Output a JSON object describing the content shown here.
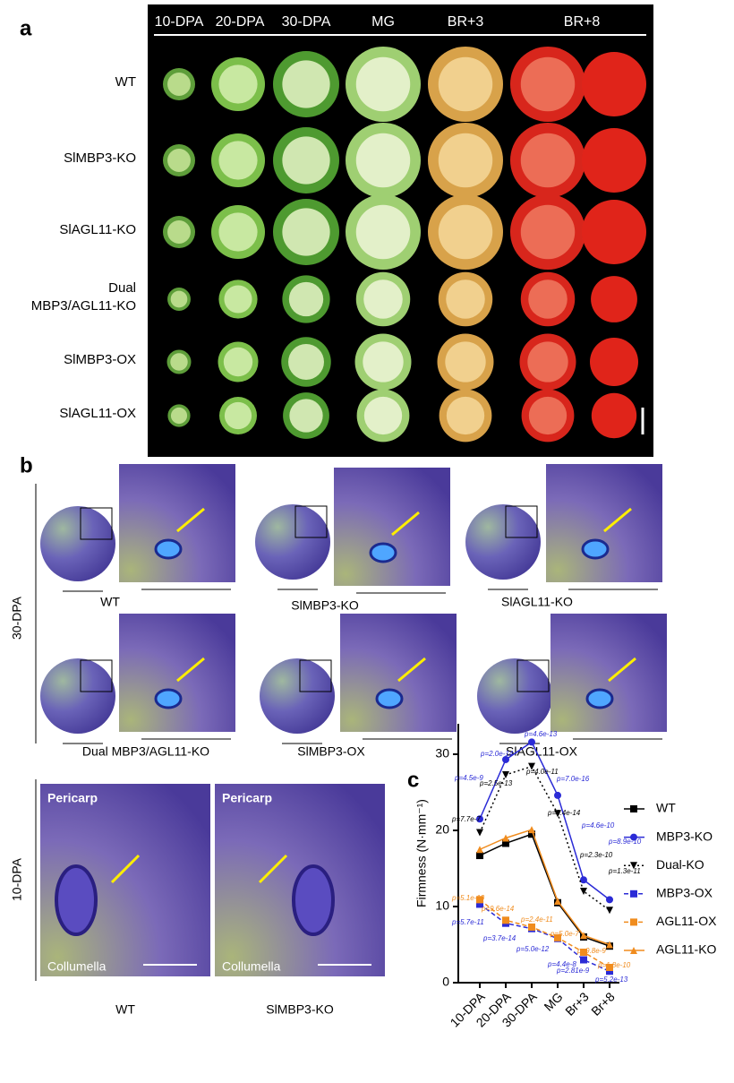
{
  "panel_a": {
    "label": "a",
    "column_headers": [
      "10-DPA",
      "20-DPA",
      "30-DPA",
      "MG",
      "BR+3",
      "BR+8"
    ],
    "row_labels": [
      [
        "WT"
      ],
      [
        "SlMBP3-KO"
      ],
      [
        "SlAGL11-KO"
      ],
      [
        "Dual",
        "MBP3/AGL11-KO"
      ],
      [
        "SlMBP3-OX"
      ],
      [
        "SlAGL11-OX"
      ]
    ]
  },
  "panel_b": {
    "label": "b",
    "stage_30": "30-DPA",
    "captions_30": [
      "WT",
      "SlMBP3-KO",
      "SlAGL11-KO",
      "Dual MBP3/AGL11-KO",
      "SlMBP3-OX",
      "SlAGL11-OX"
    ],
    "stage_10": "10-DPA",
    "images_10": [
      {
        "top": "Pericarp",
        "bottom": "Collumella",
        "caption": "WT"
      },
      {
        "top": "Pericarp",
        "bottom": "Collumella",
        "caption": "SlMBP3-KO"
      }
    ]
  },
  "chart_data": {
    "type": "line",
    "label": "c",
    "y_label": "Firmness (N·mm⁻¹)",
    "categories": [
      "10-DPA",
      "20-DPA",
      "30-DPA",
      "MG",
      "Br+3",
      "Br+8"
    ],
    "ylim": [
      0,
      34
    ],
    "yticks": [
      0,
      10,
      20,
      30
    ],
    "series": [
      {
        "name": "WT",
        "color": "#000000",
        "style": "solid",
        "marker": "square",
        "values": [
          16.7,
          18.3,
          19.5,
          10.5,
          6.0,
          4.8
        ]
      },
      {
        "name": "MBP3-KO",
        "color": "#2b2bd6",
        "style": "solid",
        "marker": "circle",
        "values": [
          21.5,
          29.3,
          31.6,
          24.6,
          13.5,
          10.9
        ]
      },
      {
        "name": "Dual-KO",
        "color": "#000000",
        "style": "dotted",
        "marker": "triangle-down",
        "values": [
          19.7,
          27.3,
          28.4,
          22.2,
          12.0,
          9.5
        ]
      },
      {
        "name": "MBP3-OX",
        "color": "#2b2bd6",
        "style": "dashed",
        "marker": "square",
        "values": [
          10.3,
          7.8,
          7.1,
          5.8,
          3.0,
          1.5
        ]
      },
      {
        "name": "AGL11-OX",
        "color": "#f08c1e",
        "style": "dashed",
        "marker": "square",
        "values": [
          10.9,
          8.2,
          7.3,
          5.9,
          4.0,
          2.0
        ]
      },
      {
        "name": "AGL11-KO",
        "color": "#f08c1e",
        "style": "solid",
        "marker": "triangle-up",
        "values": [
          17.5,
          19.0,
          20.1,
          10.7,
          6.2,
          5.0
        ]
      }
    ],
    "annotations": [
      {
        "text": "p=4.6e-13",
        "color": "#2b2bd6"
      },
      {
        "text": "p=2.0e-14",
        "color": "#2b2bd6"
      },
      {
        "text": "p=4.5e-9",
        "color": "#2b2bd6"
      },
      {
        "text": "p=7.0e-16",
        "color": "#2b2bd6"
      },
      {
        "text": "p=4.6e-10",
        "color": "#2b2bd6"
      },
      {
        "text": "p=8.9e-10",
        "color": "#2b2bd6"
      },
      {
        "text": "p=7.7e-7",
        "color": "#000000"
      },
      {
        "text": "p=2.5e-13",
        "color": "#000000"
      },
      {
        "text": "p=4.0e-11",
        "color": "#000000"
      },
      {
        "text": "p=3.4e-14",
        "color": "#000000"
      },
      {
        "text": "p=2.3e-10",
        "color": "#000000"
      },
      {
        "text": "p=1.3e-11",
        "color": "#000000"
      },
      {
        "text": "p=5.1e-10",
        "color": "#f08c1e"
      },
      {
        "text": "p=9.6e-14",
        "color": "#f08c1e"
      },
      {
        "text": "p=2.4e-11",
        "color": "#f08c1e"
      },
      {
        "text": "p=5.0e-7",
        "color": "#f08c1e"
      },
      {
        "text": "p=9.8e-9",
        "color": "#f08c1e"
      },
      {
        "text": "p=1.8e-10",
        "color": "#f08c1e"
      },
      {
        "text": "p=5.7e-11",
        "color": "#2b2bd6"
      },
      {
        "text": "p=3.7e-14",
        "color": "#2b2bd6"
      },
      {
        "text": "p=5.0e-12",
        "color": "#2b2bd6"
      },
      {
        "text": "p=4.4e-8",
        "color": "#2b2bd6"
      },
      {
        "text": "p=2.81e-9",
        "color": "#2b2bd6"
      },
      {
        "text": "p=5.2e-13",
        "color": "#2b2bd6"
      }
    ]
  }
}
